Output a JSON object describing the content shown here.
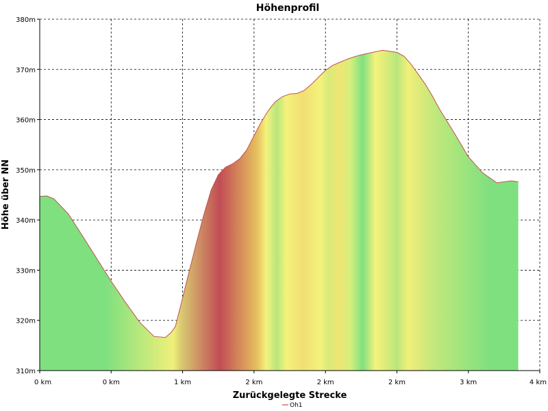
{
  "chart_data": {
    "type": "area",
    "title": "Höhenprofil",
    "xlabel": "Zurückgelegte Strecke",
    "ylabel": "Höhe über NN",
    "ylim": [
      310,
      380
    ],
    "xlim": [
      0,
      3.5
    ],
    "grid": true,
    "y_ticks": [
      {
        "value": 310,
        "label": "310m"
      },
      {
        "value": 320,
        "label": "320m"
      },
      {
        "value": 330,
        "label": "330m"
      },
      {
        "value": 340,
        "label": "340m"
      },
      {
        "value": 350,
        "label": "350m"
      },
      {
        "value": 360,
        "label": "360m"
      },
      {
        "value": 370,
        "label": "370m"
      },
      {
        "value": 380,
        "label": "380m"
      }
    ],
    "x_ticks": [
      {
        "value": 0,
        "label": "0 km"
      },
      {
        "value": 0.5,
        "label": "0 km"
      },
      {
        "value": 1.0,
        "label": "1 km"
      },
      {
        "value": 1.5,
        "label": "2 km"
      },
      {
        "value": 2.0,
        "label": "2 km"
      },
      {
        "value": 2.5,
        "label": "2 km"
      },
      {
        "value": 3.0,
        "label": "3 km"
      },
      {
        "value": 3.5,
        "label": "4 km"
      }
    ],
    "legend": {
      "position": "bottom",
      "entries": [
        {
          "name": "Oh1",
          "color": "#c0504d"
        }
      ]
    },
    "line_color": "#c0504d",
    "series": [
      {
        "name": "Oh1",
        "x": [
          0,
          0.05,
          0.1,
          0.2,
          0.3,
          0.4,
          0.5,
          0.6,
          0.7,
          0.8,
          0.88,
          0.92,
          0.95,
          1.0,
          1.05,
          1.1,
          1.15,
          1.2,
          1.25,
          1.3,
          1.35,
          1.4,
          1.45,
          1.5,
          1.55,
          1.6,
          1.65,
          1.7,
          1.75,
          1.8,
          1.85,
          1.9,
          1.95,
          2.0,
          2.05,
          2.1,
          2.15,
          2.2,
          2.25,
          2.3,
          2.4,
          2.5,
          2.55,
          2.6,
          2.65,
          2.7,
          2.75,
          2.8,
          2.9,
          3.0,
          3.1,
          3.2,
          3.3,
          3.35
        ],
        "y": [
          344.7,
          344.8,
          344.2,
          341.2,
          336.8,
          332.3,
          327.8,
          323.6,
          319.6,
          316.8,
          316.6,
          317.6,
          318.8,
          324.5,
          330.2,
          335.8,
          341.2,
          346.0,
          349.0,
          350.5,
          351.2,
          352.2,
          354.0,
          356.8,
          359.5,
          361.8,
          363.6,
          364.6,
          365.1,
          365.2,
          365.8,
          367.0,
          368.4,
          369.8,
          370.8,
          371.4,
          372.0,
          372.5,
          372.9,
          373.2,
          373.8,
          373.4,
          372.6,
          371.0,
          369.0,
          367.0,
          364.6,
          362.0,
          357.4,
          352.6,
          349.4,
          347.4,
          347.8,
          347.6
        ],
        "colors_by_grade": true
      }
    ],
    "color_bands": [
      {
        "x0": 0.0,
        "x1": 0.92,
        "color": "#7fe07f"
      },
      {
        "x0": 0.92,
        "x1": 0.95,
        "color": "#f0f07a"
      },
      {
        "x0": 0.95,
        "x1": 1.02,
        "color": "#d8cd72"
      },
      {
        "x0": 1.02,
        "x1": 1.5,
        "color": "#c24c55"
      },
      {
        "x0": 1.5,
        "x1": 1.55,
        "color": "#e6c260"
      },
      {
        "x0": 1.55,
        "x1": 1.62,
        "color": "#f4f27c"
      },
      {
        "x0": 1.62,
        "x1": 1.7,
        "color": "#b8e67c"
      },
      {
        "x0": 1.7,
        "x1": 1.75,
        "color": "#f4f27c"
      },
      {
        "x0": 1.75,
        "x1": 1.93,
        "color": "#f1df73"
      },
      {
        "x0": 1.93,
        "x1": 2.0,
        "color": "#f4f27c"
      },
      {
        "x0": 2.0,
        "x1": 2.05,
        "color": "#d8ea7a"
      },
      {
        "x0": 2.05,
        "x1": 2.15,
        "color": "#f1e573"
      },
      {
        "x0": 2.15,
        "x1": 2.2,
        "color": "#d4f07c"
      },
      {
        "x0": 2.2,
        "x1": 2.32,
        "color": "#7fe07f"
      },
      {
        "x0": 2.32,
        "x1": 2.38,
        "color": "#f4f27c"
      },
      {
        "x0": 2.38,
        "x1": 2.45,
        "color": "#e0ec7a"
      },
      {
        "x0": 2.45,
        "x1": 2.55,
        "color": "#b8e67c"
      },
      {
        "x0": 2.55,
        "x1": 2.6,
        "color": "#f0f07a"
      },
      {
        "x0": 2.6,
        "x1": 2.75,
        "color": "#d8ea7a"
      },
      {
        "x0": 2.75,
        "x1": 2.8,
        "color": "#bfe87c"
      },
      {
        "x0": 2.8,
        "x1": 3.5,
        "color": "#7fe07f"
      }
    ]
  }
}
